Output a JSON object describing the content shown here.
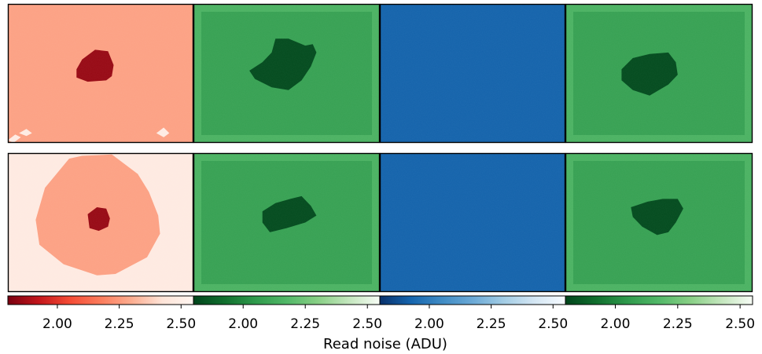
{
  "chart_data": {
    "type": "heatmap",
    "xlabel": "Read noise (ADU)",
    "colorbar": {
      "range": [
        1.8,
        2.55
      ],
      "ticks": [
        2.0,
        2.25,
        2.5
      ],
      "tick_labels": [
        "2.00",
        "2.25",
        "2.50"
      ]
    },
    "colormaps": [
      {
        "column": 1,
        "name": "Reds",
        "stops": [
          "#7a0010",
          "#c3161b",
          "#f44b35",
          "#fb7c5c",
          "#fcad90",
          "#fee4d8",
          "#fff5f0"
        ]
      },
      {
        "column": 2,
        "name": "Greens",
        "stops": [
          "#00441b",
          "#116f2e",
          "#2f9a4c",
          "#52b868",
          "#88cf85",
          "#c3e6bd",
          "#f7fcf5"
        ]
      },
      {
        "column": 3,
        "name": "Blues",
        "stops": [
          "#08306b",
          "#1565ae",
          "#3f8bc4",
          "#6ba9d6",
          "#a2cce4",
          "#d4e6f3",
          "#f7fbff"
        ]
      },
      {
        "column": 4,
        "name": "Greens",
        "stops": [
          "#00441b",
          "#116f2e",
          "#2f9a4c",
          "#52b868",
          "#88cf85",
          "#c3e6bd",
          "#f7fcf5"
        ]
      }
    ],
    "panels": [
      {
        "row": 1,
        "column": 1,
        "background": 2.27,
        "regions": [
          {
            "kind": "spot",
            "value": 1.85
          },
          {
            "kind": "corner-bright",
            "value": 2.48
          }
        ]
      },
      {
        "row": 1,
        "column": 2,
        "background": 2.08,
        "border": 2.15,
        "regions": [
          {
            "kind": "spot",
            "value": 1.82
          }
        ]
      },
      {
        "row": 1,
        "column": 3,
        "background": 1.92,
        "regions": []
      },
      {
        "row": 1,
        "column": 4,
        "background": 2.08,
        "border": 2.15,
        "regions": [
          {
            "kind": "spot",
            "value": 1.82
          }
        ]
      },
      {
        "row": 2,
        "column": 1,
        "background": 2.47,
        "regions": [
          {
            "kind": "blob",
            "value": 2.27
          },
          {
            "kind": "spot",
            "value": 1.85
          }
        ]
      },
      {
        "row": 2,
        "column": 2,
        "background": 2.08,
        "border": 2.15,
        "regions": [
          {
            "kind": "spot",
            "value": 1.82
          }
        ]
      },
      {
        "row": 2,
        "column": 3,
        "background": 1.92,
        "regions": []
      },
      {
        "row": 2,
        "column": 4,
        "background": 2.08,
        "border": 2.15,
        "regions": [
          {
            "kind": "spot",
            "value": 1.82
          }
        ]
      }
    ]
  }
}
